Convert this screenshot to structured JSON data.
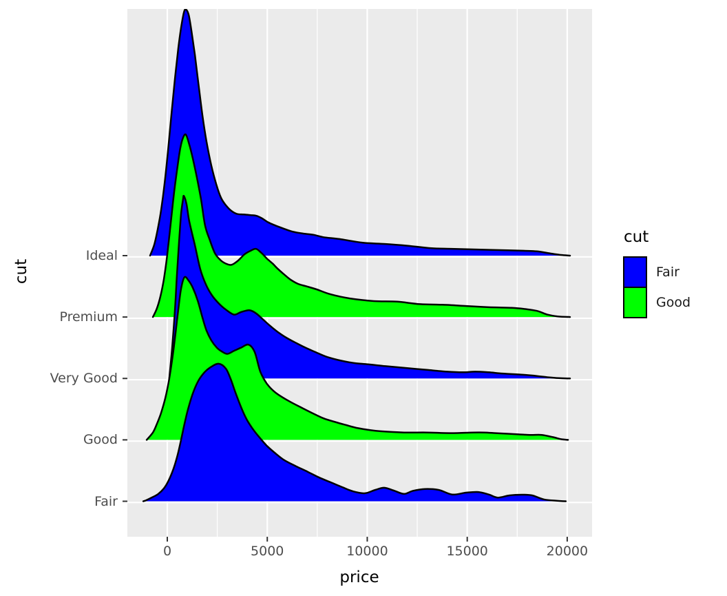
{
  "figure": {
    "kind": "ggplot2 ridgeline density plot"
  },
  "panel": {
    "background": "#EBEBEB",
    "grid_color": "#FFFFFF",
    "tick_color": "#333333",
    "tick_label_color": "#4D4D4D",
    "outline_color": "#000000"
  },
  "legend": {
    "title": "cut",
    "items": [
      {
        "label": "Fair",
        "color": "#0000FF"
      },
      {
        "label": "Good",
        "color": "#00FF00"
      }
    ]
  },
  "chart_data": {
    "type": "area",
    "variant": "ridgeline-density",
    "xlabel": "price",
    "ylabel": "cut",
    "x_ticks": [
      0,
      5000,
      10000,
      15000,
      20000
    ],
    "x_minor_ticks": [
      2500,
      7500,
      12500,
      17500
    ],
    "x_range": [
      -2000,
      21250
    ],
    "y_categories": [
      "Fair",
      "Good",
      "Very Good",
      "Premium",
      "Ideal"
    ],
    "height_unit": "1.0 equals vertical distance between adjacent cut rows",
    "series": [
      {
        "cut": "Ideal",
        "fill_legend": "Fair",
        "color": "#0000FF",
        "points": [
          [
            -860,
            0
          ],
          [
            -650,
            0.18
          ],
          [
            -480,
            0.43
          ],
          [
            -310,
            0.74
          ],
          [
            -140,
            1.16
          ],
          [
            30,
            1.69
          ],
          [
            210,
            2.31
          ],
          [
            380,
            2.87
          ],
          [
            550,
            3.38
          ],
          [
            690,
            3.71
          ],
          [
            830,
            3.96
          ],
          [
            930,
            4.01
          ],
          [
            1070,
            3.92
          ],
          [
            1210,
            3.66
          ],
          [
            1380,
            3.27
          ],
          [
            1550,
            2.82
          ],
          [
            1760,
            2.28
          ],
          [
            1960,
            1.86
          ],
          [
            2200,
            1.47
          ],
          [
            2450,
            1.16
          ],
          [
            2690,
            0.94
          ],
          [
            2930,
            0.82
          ],
          [
            3200,
            0.73
          ],
          [
            3480,
            0.68
          ],
          [
            3820,
            0.67
          ],
          [
            4170,
            0.66
          ],
          [
            4440,
            0.65
          ],
          [
            4720,
            0.61
          ],
          [
            5060,
            0.54
          ],
          [
            5410,
            0.49
          ],
          [
            5820,
            0.44
          ],
          [
            6270,
            0.39
          ],
          [
            6780,
            0.36
          ],
          [
            7300,
            0.34
          ],
          [
            7820,
            0.3
          ],
          [
            8610,
            0.27
          ],
          [
            9780,
            0.21
          ],
          [
            10910,
            0.19
          ],
          [
            12050,
            0.16
          ],
          [
            13220,
            0.12
          ],
          [
            14360,
            0.11
          ],
          [
            15490,
            0.1
          ],
          [
            16660,
            0.09
          ],
          [
            17800,
            0.08
          ],
          [
            18490,
            0.07
          ],
          [
            19180,
            0.034
          ],
          [
            19690,
            0.011
          ],
          [
            20140,
            0
          ]
        ]
      },
      {
        "cut": "Premium",
        "fill_legend": "Good",
        "color": "#00FF00",
        "points": [
          [
            -720,
            0
          ],
          [
            -520,
            0.14
          ],
          [
            -340,
            0.34
          ],
          [
            -170,
            0.62
          ],
          [
            0,
            1.02
          ],
          [
            170,
            1.52
          ],
          [
            340,
            2.03
          ],
          [
            520,
            2.47
          ],
          [
            650,
            2.75
          ],
          [
            790,
            2.92
          ],
          [
            930,
            2.97
          ],
          [
            1100,
            2.81
          ],
          [
            1270,
            2.59
          ],
          [
            1480,
            2.27
          ],
          [
            1690,
            1.91
          ],
          [
            1890,
            1.49
          ],
          [
            2140,
            1.24
          ],
          [
            2380,
            1.04
          ],
          [
            2650,
            0.93
          ],
          [
            2930,
            0.87
          ],
          [
            3200,
            0.85
          ],
          [
            3510,
            0.91
          ],
          [
            3860,
            1.02
          ],
          [
            4170,
            1.08
          ],
          [
            4440,
            1.11
          ],
          [
            4720,
            1.04
          ],
          [
            4990,
            0.95
          ],
          [
            5270,
            0.87
          ],
          [
            5510,
            0.79
          ],
          [
            5820,
            0.7
          ],
          [
            6160,
            0.61
          ],
          [
            6540,
            0.54
          ],
          [
            6960,
            0.5
          ],
          [
            7470,
            0.45
          ],
          [
            8160,
            0.37
          ],
          [
            9190,
            0.3
          ],
          [
            10330,
            0.26
          ],
          [
            11500,
            0.25
          ],
          [
            12640,
            0.21
          ],
          [
            13770,
            0.2
          ],
          [
            14940,
            0.18
          ],
          [
            16080,
            0.16
          ],
          [
            17220,
            0.15
          ],
          [
            17900,
            0.13
          ],
          [
            18490,
            0.1
          ],
          [
            19010,
            0.04
          ],
          [
            19520,
            0.01
          ],
          [
            20140,
            0
          ]
        ]
      },
      {
        "cut": "Very Good",
        "fill_legend": "Fair",
        "color": "#0000FF",
        "points": [
          [
            100,
            0
          ],
          [
            240,
            0.49
          ],
          [
            380,
            1.1
          ],
          [
            480,
            1.67
          ],
          [
            590,
            2.23
          ],
          [
            690,
            2.68
          ],
          [
            790,
            2.92
          ],
          [
            830,
            2.97
          ],
          [
            960,
            2.84
          ],
          [
            1100,
            2.56
          ],
          [
            1380,
            2.17
          ],
          [
            1650,
            1.78
          ],
          [
            1930,
            1.53
          ],
          [
            2240,
            1.35
          ],
          [
            2580,
            1.22
          ],
          [
            2930,
            1.12
          ],
          [
            3340,
            1.04
          ],
          [
            3680,
            1.08
          ],
          [
            4100,
            1.11
          ],
          [
            4440,
            1.06
          ],
          [
            4790,
            0.96
          ],
          [
            5130,
            0.86
          ],
          [
            5510,
            0.76
          ],
          [
            5920,
            0.67
          ],
          [
            6370,
            0.59
          ],
          [
            6850,
            0.51
          ],
          [
            7400,
            0.43
          ],
          [
            7990,
            0.35
          ],
          [
            8680,
            0.29
          ],
          [
            9370,
            0.25
          ],
          [
            10050,
            0.23
          ],
          [
            10910,
            0.2
          ],
          [
            11950,
            0.17
          ],
          [
            12980,
            0.14
          ],
          [
            14010,
            0.11
          ],
          [
            14770,
            0.1
          ],
          [
            15390,
            0.11
          ],
          [
            16080,
            0.1
          ],
          [
            16770,
            0.08
          ],
          [
            17800,
            0.06
          ],
          [
            18490,
            0.04
          ],
          [
            19010,
            0.02
          ],
          [
            19590,
            0.005
          ],
          [
            20140,
            0
          ]
        ]
      },
      {
        "cut": "Good",
        "fill_legend": "Good",
        "color": "#00FF00",
        "points": [
          [
            -1030,
            0
          ],
          [
            -720,
            0.12
          ],
          [
            -520,
            0.26
          ],
          [
            -310,
            0.44
          ],
          [
            -100,
            0.68
          ],
          [
            100,
            1.0
          ],
          [
            280,
            1.39
          ],
          [
            410,
            1.73
          ],
          [
            550,
            2.12
          ],
          [
            690,
            2.46
          ],
          [
            860,
            2.65
          ],
          [
            1070,
            2.59
          ],
          [
            1270,
            2.48
          ],
          [
            1520,
            2.27
          ],
          [
            1760,
            1.99
          ],
          [
            1960,
            1.78
          ],
          [
            2200,
            1.62
          ],
          [
            2480,
            1.5
          ],
          [
            2720,
            1.44
          ],
          [
            3000,
            1.4
          ],
          [
            3340,
            1.45
          ],
          [
            3680,
            1.5
          ],
          [
            4060,
            1.55
          ],
          [
            4370,
            1.43
          ],
          [
            4650,
            1.11
          ],
          [
            4990,
            0.91
          ],
          [
            5410,
            0.77
          ],
          [
            6090,
            0.63
          ],
          [
            6680,
            0.53
          ],
          [
            7230,
            0.44
          ],
          [
            7820,
            0.35
          ],
          [
            8400,
            0.29
          ],
          [
            8950,
            0.24
          ],
          [
            9540,
            0.19
          ],
          [
            10120,
            0.16
          ],
          [
            10670,
            0.14
          ],
          [
            11840,
            0.12
          ],
          [
            12980,
            0.12
          ],
          [
            14120,
            0.11
          ],
          [
            15290,
            0.12
          ],
          [
            15840,
            0.12
          ],
          [
            16420,
            0.11
          ],
          [
            17010,
            0.1
          ],
          [
            17560,
            0.09
          ],
          [
            18140,
            0.08
          ],
          [
            18730,
            0.08
          ],
          [
            19280,
            0.045
          ],
          [
            19690,
            0.011
          ],
          [
            20040,
            0
          ]
        ]
      },
      {
        "cut": "Fair",
        "fill_legend": "Fair",
        "color": "#0000FF",
        "points": [
          [
            -1200,
            0
          ],
          [
            -1030,
            0.02
          ],
          [
            -720,
            0.07
          ],
          [
            -450,
            0.12
          ],
          [
            -170,
            0.21
          ],
          [
            70,
            0.34
          ],
          [
            310,
            0.53
          ],
          [
            520,
            0.76
          ],
          [
            690,
            1.0
          ],
          [
            860,
            1.26
          ],
          [
            1030,
            1.49
          ],
          [
            1270,
            1.75
          ],
          [
            1550,
            1.96
          ],
          [
            1860,
            2.1
          ],
          [
            2200,
            2.19
          ],
          [
            2580,
            2.24
          ],
          [
            2930,
            2.16
          ],
          [
            3170,
            1.99
          ],
          [
            3410,
            1.77
          ],
          [
            3680,
            1.54
          ],
          [
            3960,
            1.34
          ],
          [
            4270,
            1.18
          ],
          [
            4610,
            1.04
          ],
          [
            4990,
            0.9
          ],
          [
            5410,
            0.78
          ],
          [
            5850,
            0.67
          ],
          [
            6440,
            0.57
          ],
          [
            7020,
            0.48
          ],
          [
            7570,
            0.39
          ],
          [
            8160,
            0.31
          ],
          [
            8750,
            0.23
          ],
          [
            9300,
            0.16
          ],
          [
            9880,
            0.13
          ],
          [
            10400,
            0.185
          ],
          [
            10850,
            0.22
          ],
          [
            11360,
            0.17
          ],
          [
            11840,
            0.12
          ],
          [
            12290,
            0.17
          ],
          [
            12880,
            0.2
          ],
          [
            13570,
            0.185
          ],
          [
            14250,
            0.11
          ],
          [
            14940,
            0.14
          ],
          [
            15560,
            0.15
          ],
          [
            16080,
            0.11
          ],
          [
            16530,
            0.06
          ],
          [
            17110,
            0.095
          ],
          [
            17730,
            0.107
          ],
          [
            18250,
            0.095
          ],
          [
            18830,
            0.03
          ],
          [
            19420,
            0.01
          ],
          [
            19930,
            0
          ]
        ]
      }
    ]
  }
}
